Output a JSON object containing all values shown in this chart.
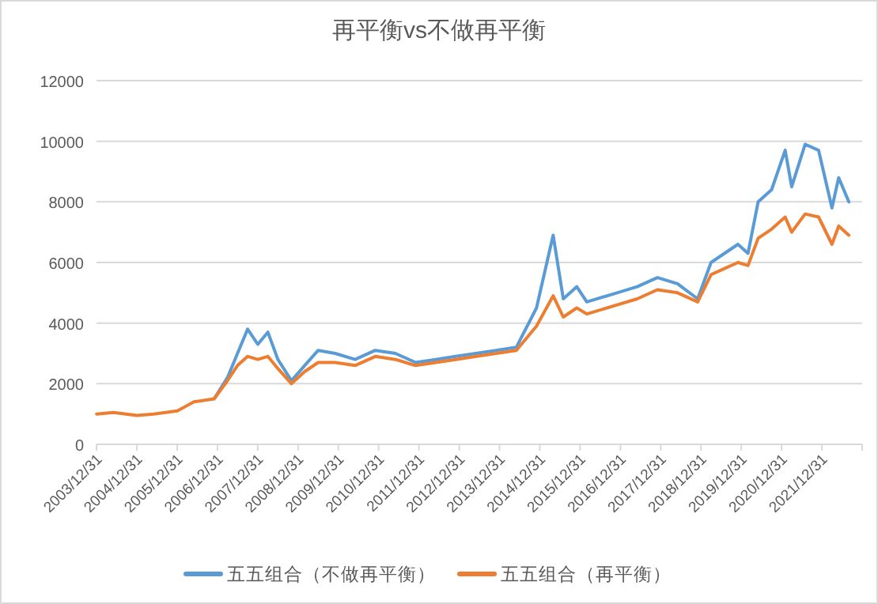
{
  "chart_data": {
    "type": "line",
    "title": "再平衡vs不做再平衡",
    "x": [
      "2004-01",
      "2004-06",
      "2005-01",
      "2005-06",
      "2006-01",
      "2006-06",
      "2006-12",
      "2007-04",
      "2007-07",
      "2007-10",
      "2008-01",
      "2008-04",
      "2008-07",
      "2008-11",
      "2009-03",
      "2009-07",
      "2009-12",
      "2010-06",
      "2010-12",
      "2011-06",
      "2011-12",
      "2012-06",
      "2012-12",
      "2013-06",
      "2013-12",
      "2014-06",
      "2014-12",
      "2015-05",
      "2015-08",
      "2015-12",
      "2016-03",
      "2016-12",
      "2017-06",
      "2017-12",
      "2018-06",
      "2018-12",
      "2019-04",
      "2019-12",
      "2020-03",
      "2020-06",
      "2020-10",
      "2021-02",
      "2021-04",
      "2021-08",
      "2021-12",
      "2022-04",
      "2022-06",
      "2022-09"
    ],
    "series": [
      {
        "name": "五五组合（不做再平衡）",
        "color": "#5b9bd5",
        "values": [
          null,
          null,
          null,
          null,
          null,
          null,
          1500,
          2200,
          3000,
          3800,
          3300,
          3700,
          2800,
          2100,
          2600,
          3100,
          3000,
          2800,
          3100,
          3000,
          2700,
          2800,
          2900,
          3000,
          3100,
          3200,
          4500,
          6900,
          4800,
          5200,
          4700,
          5000,
          5200,
          5500,
          5300,
          4800,
          6000,
          6600,
          6300,
          8000,
          8400,
          9700,
          8500,
          9900,
          9700,
          7800,
          8800,
          8000
        ]
      },
      {
        "name": "五五组合（再平衡）",
        "color": "#ed7d31",
        "values": [
          1000,
          1050,
          950,
          1000,
          1100,
          1400,
          1500,
          2100,
          2600,
          2900,
          2800,
          2900,
          2500,
          2000,
          2400,
          2700,
          2700,
          2600,
          2900,
          2800,
          2600,
          2700,
          2800,
          2900,
          3000,
          3100,
          3900,
          4900,
          4200,
          4500,
          4300,
          4600,
          4800,
          5100,
          5000,
          4700,
          5600,
          6000,
          5900,
          6800,
          7100,
          7500,
          7000,
          7600,
          7500,
          6600,
          7200,
          6900
        ]
      }
    ],
    "xlim": [
      "2003-12-31",
      "2022-12-31"
    ],
    "xticks": [
      {
        "value": "2003-12-31",
        "label": "2003/12/31"
      },
      {
        "value": "2004-12-31",
        "label": "2004/12/31"
      },
      {
        "value": "2005-12-31",
        "label": "2005/12/31"
      },
      {
        "value": "2006-12-31",
        "label": "2006/12/31"
      },
      {
        "value": "2007-12-31",
        "label": "2007/12/31"
      },
      {
        "value": "2008-12-31",
        "label": "2008/12/31"
      },
      {
        "value": "2009-12-31",
        "label": "2009/12/31"
      },
      {
        "value": "2010-12-31",
        "label": "2010/12/31"
      },
      {
        "value": "2011-12-31",
        "label": "2011/12/31"
      },
      {
        "value": "2012-12-31",
        "label": "2012/12/31"
      },
      {
        "value": "2013-12-31",
        "label": "2013/12/31"
      },
      {
        "value": "2014-12-31",
        "label": "2014/12/31"
      },
      {
        "value": "2015-12-31",
        "label": "2015/12/31"
      },
      {
        "value": "2016-12-31",
        "label": "2016/12/31"
      },
      {
        "value": "2017-12-31",
        "label": "2017/12/31"
      },
      {
        "value": "2018-12-31",
        "label": "2018/12/31"
      },
      {
        "value": "2019-12-31",
        "label": "2019/12/31"
      },
      {
        "value": "2020-12-31",
        "label": "2020/12/31"
      },
      {
        "value": "2021-12-31",
        "label": "2021/12/31"
      },
      {
        "value": "2022-12-31",
        "label": null
      }
    ],
    "ylim": [
      0,
      12000
    ],
    "yticks": [
      0,
      2000,
      4000,
      6000,
      8000,
      10000,
      12000
    ],
    "grid": "y",
    "legend": "bottom",
    "marker": "none",
    "line_style": "solid"
  }
}
